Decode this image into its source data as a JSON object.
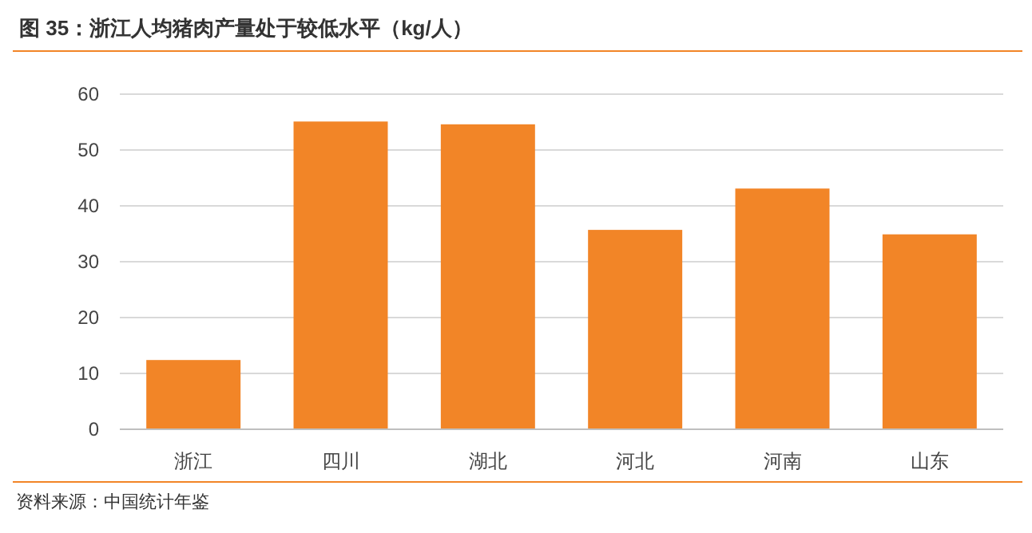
{
  "chart_data": {
    "type": "bar",
    "title": "图 35：浙江人均猪肉产量处于较低水平（kg/人）",
    "categories": [
      "浙江",
      "四川",
      "湖北",
      "河北",
      "河南",
      "山东"
    ],
    "values": [
      12.4,
      55.1,
      54.6,
      35.7,
      43.1,
      34.9
    ],
    "color": "#f28527",
    "ylim": [
      0,
      60
    ],
    "yticks": [
      0,
      10,
      20,
      30,
      40,
      50,
      60
    ],
    "grid": "y",
    "annotations": [
      "资料来源：中国统计年鉴"
    ]
  }
}
